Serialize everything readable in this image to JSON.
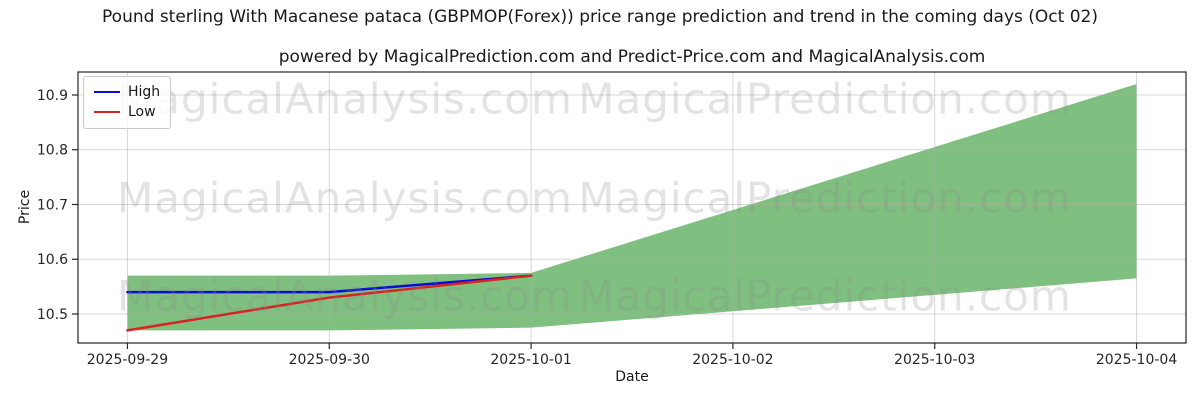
{
  "title": "Pound sterling With Macanese pataca (GBPMOP(Forex)) price range prediction and trend in the coming days (Oct 02)",
  "subtitle": "powered by MagicalPrediction.com and Predict-Price.com and MagicalAnalysis.com",
  "legend": {
    "items": [
      {
        "label": "High",
        "color": "#0b0bd6"
      },
      {
        "label": "Low",
        "color": "#d62323"
      }
    ]
  },
  "watermarks": {
    "left_text": "MagicalAnalysis.com",
    "right_text": "MagicalPrediction.com"
  },
  "chart_data": {
    "type": "line",
    "title": "Pound sterling With Macanese pataca (GBPMOP(Forex)) price range prediction and trend in the coming days (Oct 02)",
    "xlabel": "Date",
    "ylabel": "Price",
    "categories": [
      "2025-09-29",
      "2025-09-30",
      "2025-10-01",
      "2025-10-02",
      "2025-10-03",
      "2025-10-04"
    ],
    "yticks": [
      10.5,
      10.6,
      10.7,
      10.8,
      10.9
    ],
    "xlim": [
      -0.245,
      5.245
    ],
    "ylim": [
      10.447,
      10.942
    ],
    "grid": true,
    "legend_position": "upper left",
    "series": [
      {
        "name": "High",
        "color": "#0b0bd6",
        "x": [
          0,
          1,
          2
        ],
        "values": [
          10.54,
          10.54,
          10.57
        ]
      },
      {
        "name": "Low",
        "color": "#d62323",
        "x": [
          0,
          1,
          2
        ],
        "values": [
          10.47,
          10.53,
          10.57
        ]
      }
    ],
    "band": {
      "name": "prediction-range",
      "color": "#008000",
      "opacity": 0.5,
      "x": [
        0,
        1,
        2,
        3,
        4,
        5
      ],
      "upper": [
        10.57,
        10.57,
        10.575,
        10.69,
        10.805,
        10.92
      ],
      "lower": [
        10.47,
        10.47,
        10.475,
        10.505,
        10.535,
        10.565
      ]
    },
    "style": {
      "grid_color": "#b0b0b0",
      "spine_color": "#262626",
      "tick_label_color": "#262626",
      "line_width": 2.5
    }
  }
}
